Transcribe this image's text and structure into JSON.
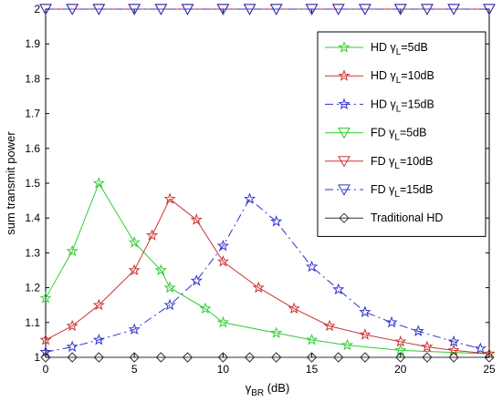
{
  "chart_data": {
    "type": "line",
    "xlabel": {
      "main": "γ",
      "sub": "BR",
      "rest": " (dB)"
    },
    "ylabel": "sum transmit power",
    "xlim": [
      0,
      25
    ],
    "ylim": [
      1,
      2
    ],
    "xticks": [
      "0",
      "5",
      "10",
      "15",
      "20",
      "25"
    ],
    "yticks": [
      "1",
      "1.1",
      "1.2",
      "1.3",
      "1.4",
      "1.5",
      "1.6",
      "1.7",
      "1.8",
      "1.9",
      "2"
    ],
    "grid": false,
    "legend_position": "top-right",
    "series": [
      {
        "name": "HD γL=5dB",
        "legend": {
          "pre": "HD γ",
          "sub": "L",
          "post": "=5dB"
        },
        "color": "#33cc33",
        "marker": "star",
        "dash": "solid",
        "x": [
          0,
          1.5,
          3,
          5,
          6.5,
          7,
          9,
          10,
          13,
          15,
          17,
          20,
          25
        ],
        "y": [
          1.17,
          1.305,
          1.5,
          1.33,
          1.25,
          1.2,
          1.14,
          1.1,
          1.07,
          1.05,
          1.035,
          1.02,
          1.01
        ]
      },
      {
        "name": "HD γL=10dB",
        "legend": {
          "pre": "HD γ",
          "sub": "L",
          "post": "=10dB"
        },
        "color": "#cc3333",
        "marker": "star",
        "dash": "solid",
        "x": [
          0,
          1.5,
          3,
          5,
          6,
          7,
          8.5,
          10,
          12,
          14,
          16,
          18,
          20,
          21.5,
          23,
          25
        ],
        "y": [
          1.05,
          1.09,
          1.15,
          1.25,
          1.35,
          1.455,
          1.395,
          1.275,
          1.2,
          1.14,
          1.09,
          1.065,
          1.045,
          1.03,
          1.02,
          1.01
        ]
      },
      {
        "name": "HD γL=15dB",
        "legend": {
          "pre": "HD γ",
          "sub": "L",
          "post": "=15dB"
        },
        "color": "#3333cc",
        "marker": "star",
        "dash": "dashdot",
        "x": [
          0,
          1.5,
          3,
          5,
          7,
          8.5,
          10,
          11.5,
          13,
          15,
          16.5,
          18,
          19.5,
          21,
          23,
          24.5
        ],
        "y": [
          1.015,
          1.03,
          1.05,
          1.08,
          1.15,
          1.22,
          1.32,
          1.455,
          1.39,
          1.26,
          1.195,
          1.13,
          1.1,
          1.075,
          1.045,
          1.025
        ]
      },
      {
        "name": "FD γL=5dB",
        "legend": {
          "pre": "FD γ",
          "sub": "L",
          "post": "=5dB"
        },
        "color": "#33cc33",
        "marker": "triangle-down",
        "dash": "solid",
        "x": [
          0,
          1.5,
          3,
          5,
          6.5,
          8,
          10,
          11.5,
          13,
          15,
          16.5,
          18,
          20,
          21.5,
          23,
          25
        ],
        "y": [
          2,
          2,
          2,
          2,
          2,
          2,
          2,
          2,
          2,
          2,
          2,
          2,
          2,
          2,
          2,
          2
        ]
      },
      {
        "name": "FD γL=10dB",
        "legend": {
          "pre": "FD γ",
          "sub": "L",
          "post": "=10dB"
        },
        "color": "#cc3333",
        "marker": "triangle-down",
        "dash": "solid",
        "x": [
          0,
          1.5,
          3,
          5,
          6.5,
          8,
          10,
          11.5,
          13,
          15,
          16.5,
          18,
          20,
          21.5,
          23,
          25
        ],
        "y": [
          2,
          2,
          2,
          2,
          2,
          2,
          2,
          2,
          2,
          2,
          2,
          2,
          2,
          2,
          2,
          2
        ]
      },
      {
        "name": "FD γL=15dB",
        "legend": {
          "pre": "FD γ",
          "sub": "L",
          "post": "=15dB"
        },
        "color": "#3333cc",
        "marker": "triangle-down",
        "dash": "dashdot",
        "x": [
          0,
          1.5,
          3,
          5,
          6.5,
          8,
          10,
          11.5,
          13,
          15,
          16.5,
          18,
          20,
          21.5,
          23,
          25
        ],
        "y": [
          2,
          2,
          2,
          2,
          2,
          2,
          2,
          2,
          2,
          2,
          2,
          2,
          2,
          2,
          2,
          2
        ]
      },
      {
        "name": "Traditional HD",
        "legend": {
          "pre": "Traditional HD",
          "sub": "",
          "post": ""
        },
        "color": "#333333",
        "marker": "diamond",
        "dash": "solid",
        "x": [
          0,
          1.5,
          3,
          5,
          6.5,
          8,
          10,
          11.5,
          13,
          15,
          16.5,
          18,
          20,
          21.5,
          23,
          25
        ],
        "y": [
          1,
          1,
          1,
          1,
          1,
          1,
          1,
          1,
          1,
          1,
          1,
          1,
          1,
          1,
          1,
          1
        ]
      }
    ]
  }
}
